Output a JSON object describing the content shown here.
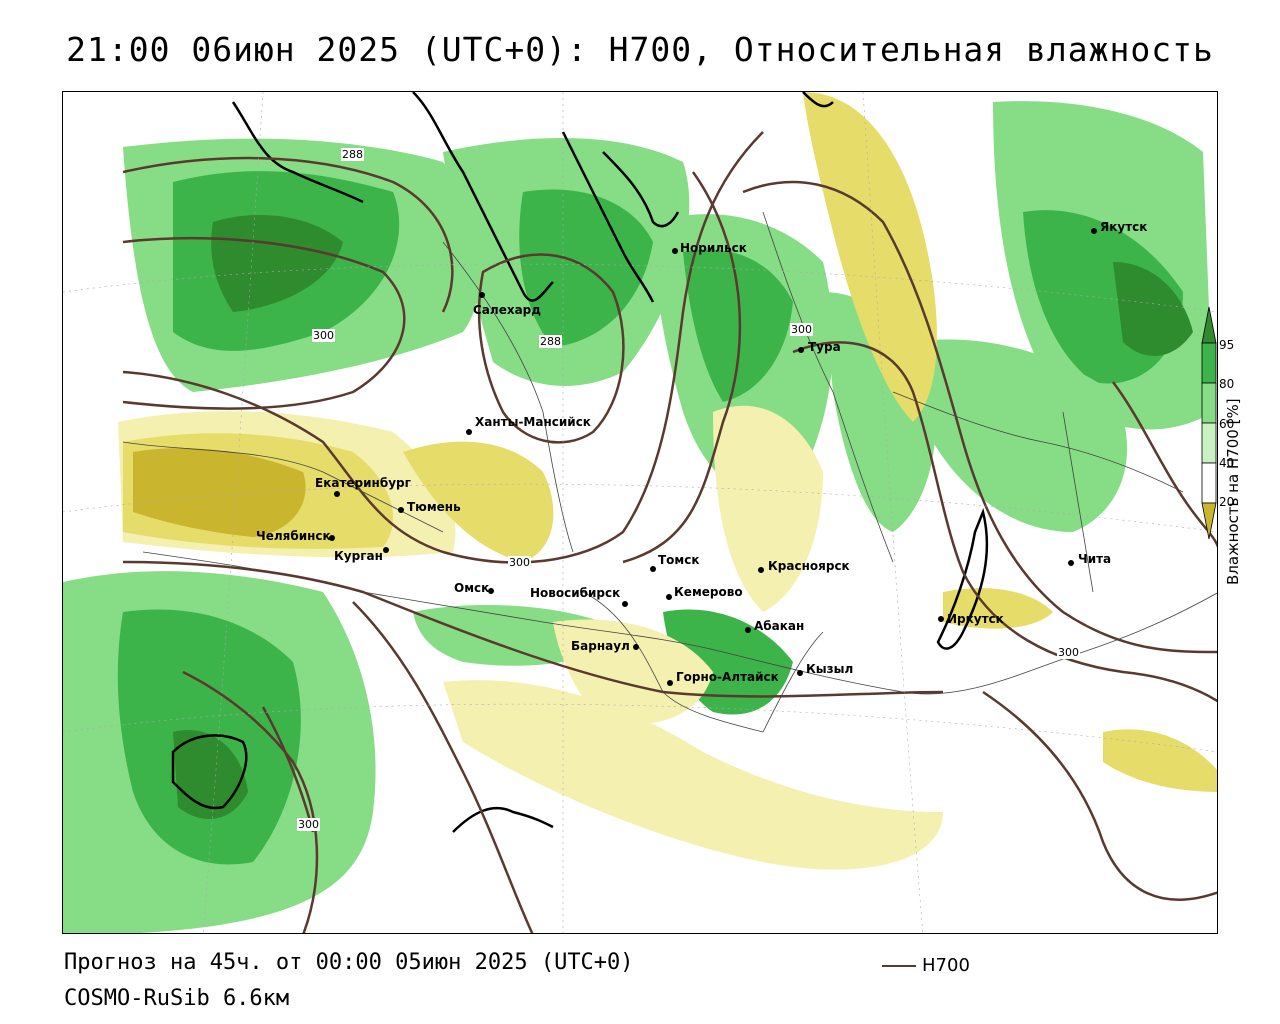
{
  "title": "21:00 06июн 2025 (UTC+0): H700, Относительная влажность",
  "footer": {
    "forecast": "Прогноз на 45ч. от 00:00 05июн 2025 (UTC+0)",
    "model": "COSMO-RuSib 6.6км",
    "legend_line": "H700"
  },
  "colorbar": {
    "title": "Влажность на H700 [%]",
    "ticks": [
      "95",
      "80",
      "60",
      "40",
      "20"
    ],
    "colors": [
      "#2e8b2e",
      "#3cb44a",
      "#86dd86",
      "#c9f2c2",
      "#ffffff",
      "#f4f0b0",
      "#e6dc6a",
      "#c9b52e"
    ]
  },
  "isolines": {
    "labels": [
      "288",
      "288",
      "300",
      "300",
      "300",
      "300",
      "300"
    ],
    "color": "#5a3a2e"
  },
  "cities": [
    {
      "name": "Якутск"
    },
    {
      "name": "Норильск"
    },
    {
      "name": "Салехард"
    },
    {
      "name": "Тура"
    },
    {
      "name": "Ханты-Мансийск"
    },
    {
      "name": "Екатеринбург"
    },
    {
      "name": "Тюмень"
    },
    {
      "name": "Челябинск"
    },
    {
      "name": "Курган"
    },
    {
      "name": "Омск"
    },
    {
      "name": "Новосибирск"
    },
    {
      "name": "Томск"
    },
    {
      "name": "Кемерово"
    },
    {
      "name": "Красноярск"
    },
    {
      "name": "Абакан"
    },
    {
      "name": "Барнаул"
    },
    {
      "name": "Горно-Алтайск"
    },
    {
      "name": "Кызыл"
    },
    {
      "name": "Иркутск"
    },
    {
      "name": "Чита"
    }
  ]
}
